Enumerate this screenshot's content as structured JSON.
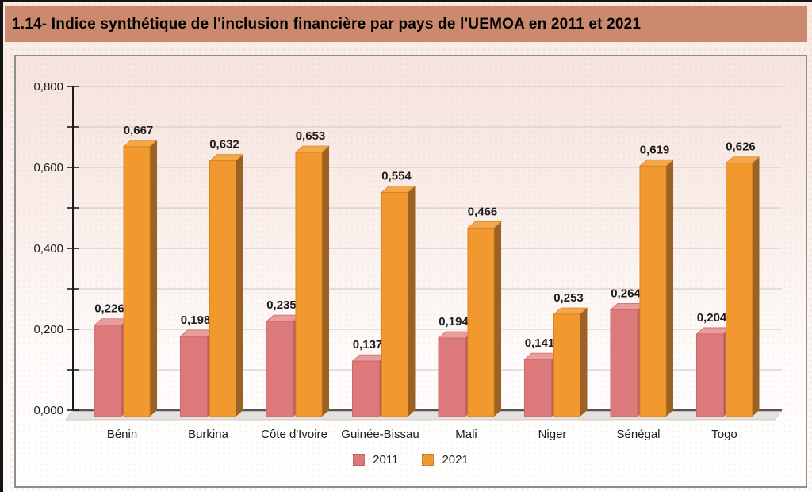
{
  "title": "1.14- Indice synthétique de l'inclusion financière par pays de l'UEMOA en 2011 et 2021",
  "colors": {
    "title_bar_bg": "#cb8a6d",
    "series_2011_front": "#dc7a7b",
    "series_2011_top": "#ea9c9c",
    "series_2011_side": "#bb6061",
    "series_2011_stroke": "#c96a6b",
    "series_2021_front": "#f1982e",
    "series_2021_top": "#f4a84c",
    "series_2021_side": "#9a6224",
    "series_2021_stroke": "#d9831f",
    "gridline": "#d8cec9",
    "axis": "#1a1a1a",
    "baseline": "#555555",
    "floor_fill": "#e4e1de",
    "floor_stroke": "#c9c5c1",
    "text": "#1c1c1c"
  },
  "chart_data": {
    "type": "bar",
    "style": "3d-column",
    "title": "1.14- Indice synthétique de l'inclusion financière par pays de l'UEMOA en 2011 et 2021",
    "categories": [
      "Bénin",
      "Burkina",
      "Côte d'Ivoire",
      "Guinée-Bissau",
      "Mali",
      "Niger",
      "Sénégal",
      "Togo"
    ],
    "series": [
      {
        "name": "2011",
        "values": [
          0.226,
          0.198,
          0.235,
          0.137,
          0.194,
          0.141,
          0.264,
          0.204
        ],
        "labels": [
          "0,226",
          "0,198",
          "0,235",
          "0,137",
          "0,194",
          "0,141",
          "0,264",
          "0,204"
        ]
      },
      {
        "name": "2021",
        "values": [
          0.667,
          0.632,
          0.653,
          0.554,
          0.466,
          0.253,
          0.619,
          0.626
        ],
        "labels": [
          "0,667",
          "0,632",
          "0,653",
          "0,554",
          "0,466",
          "0,253",
          "0,619",
          "0,626"
        ]
      }
    ],
    "xlabel": "",
    "ylabel": "",
    "ylim": [
      0,
      0.8
    ],
    "y_major_step": 0.2,
    "y_minor_step": 0.1,
    "y_tick_labels": [
      "0,000",
      "0,200",
      "0,400",
      "0,600",
      "0,800"
    ],
    "grid": true,
    "legend_position": "bottom"
  },
  "legend": {
    "items": [
      {
        "label": "2011"
      },
      {
        "label": "2021"
      }
    ]
  }
}
